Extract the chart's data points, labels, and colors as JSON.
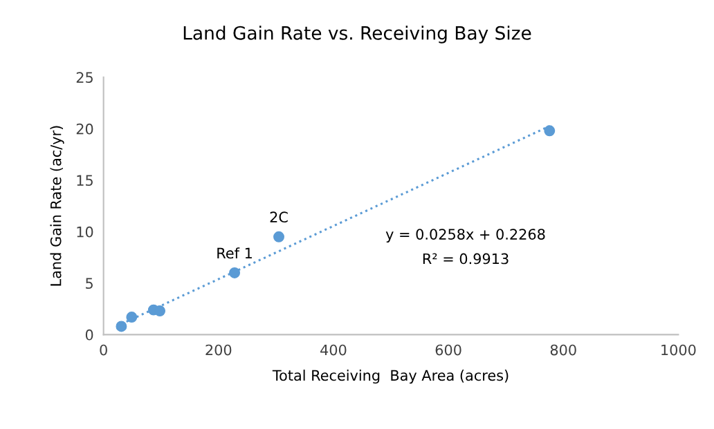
{
  "chart_data": {
    "type": "scatter",
    "title": "Land Gain Rate vs. Receiving Bay Size",
    "xlabel": "Total Receiving  Bay Area (acres)",
    "ylabel": "Land Gain Rate (ac/yr)",
    "series": [
      {
        "color": "#5b9bd5",
        "x": [
          31,
          49,
          87,
          98,
          228,
          305,
          776
        ],
        "values": [
          0.8,
          1.7,
          2.4,
          2.3,
          6.0,
          9.5,
          19.8
        ]
      },
      {
        "type": "line",
        "color": "#5b9bd5",
        "x": [
          31,
          776
        ],
        "values": [
          1.03,
          20.25
        ],
        "line_style": "dotted",
        "marker": "none"
      }
    ],
    "annotations": [
      {
        "text": "Ref 1",
        "x": 228,
        "y": 6.0
      },
      {
        "text": "2C",
        "x": 305,
        "y": 9.5
      },
      "y = 0.0258x + 0.2268",
      "R² = 0.9913"
    ],
    "xlim": [
      0,
      1000
    ],
    "xticks": [
      0,
      200,
      400,
      600,
      800,
      1000
    ],
    "ylim": [
      0,
      25
    ],
    "yticks": [
      0,
      5,
      10,
      15,
      20,
      25
    ],
    "grid": false,
    "legend": false,
    "marker": "circle"
  }
}
